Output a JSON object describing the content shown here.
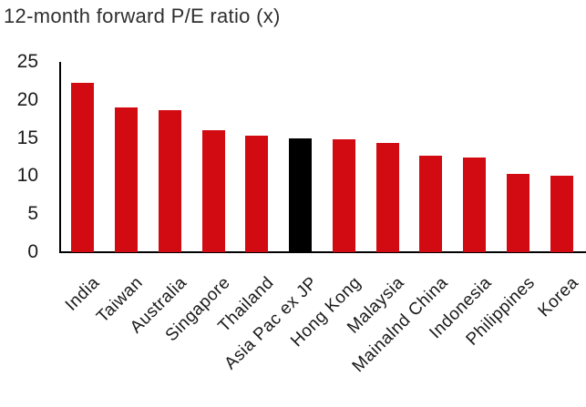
{
  "colors": {
    "bar_red": "#d20a11",
    "bar_highlight": "#000000",
    "axis": "#000000",
    "text": "#1a1a1a",
    "title_text": "#2f2f2f"
  },
  "chart_data": {
    "type": "bar",
    "title": "12-month forward P/E ratio (x)",
    "xlabel": "",
    "ylabel": "",
    "categories": [
      "India",
      "Taiwan",
      "Australia",
      "Singapore",
      "Thailand",
      "Asia Pac ex JP",
      "Hong Kong",
      "Malaysia",
      "Mainalnd China",
      "Indonesia",
      "Philippines",
      "Korea"
    ],
    "values": [
      22.2,
      19.0,
      18.7,
      16.0,
      15.3,
      14.9,
      14.8,
      14.4,
      12.7,
      12.4,
      10.3,
      10.1
    ],
    "highlight_category": "Asia Pac ex JP",
    "bar_colors": [
      "#d20a11",
      "#d20a11",
      "#d20a11",
      "#d20a11",
      "#d20a11",
      "#000000",
      "#d20a11",
      "#d20a11",
      "#d20a11",
      "#d20a11",
      "#d20a11",
      "#d20a11"
    ],
    "ylim": [
      0,
      25
    ],
    "yticks": [
      0,
      5,
      10,
      15,
      20,
      25
    ],
    "grid": false,
    "legend": false,
    "x_tick_rotation_deg": 45
  }
}
